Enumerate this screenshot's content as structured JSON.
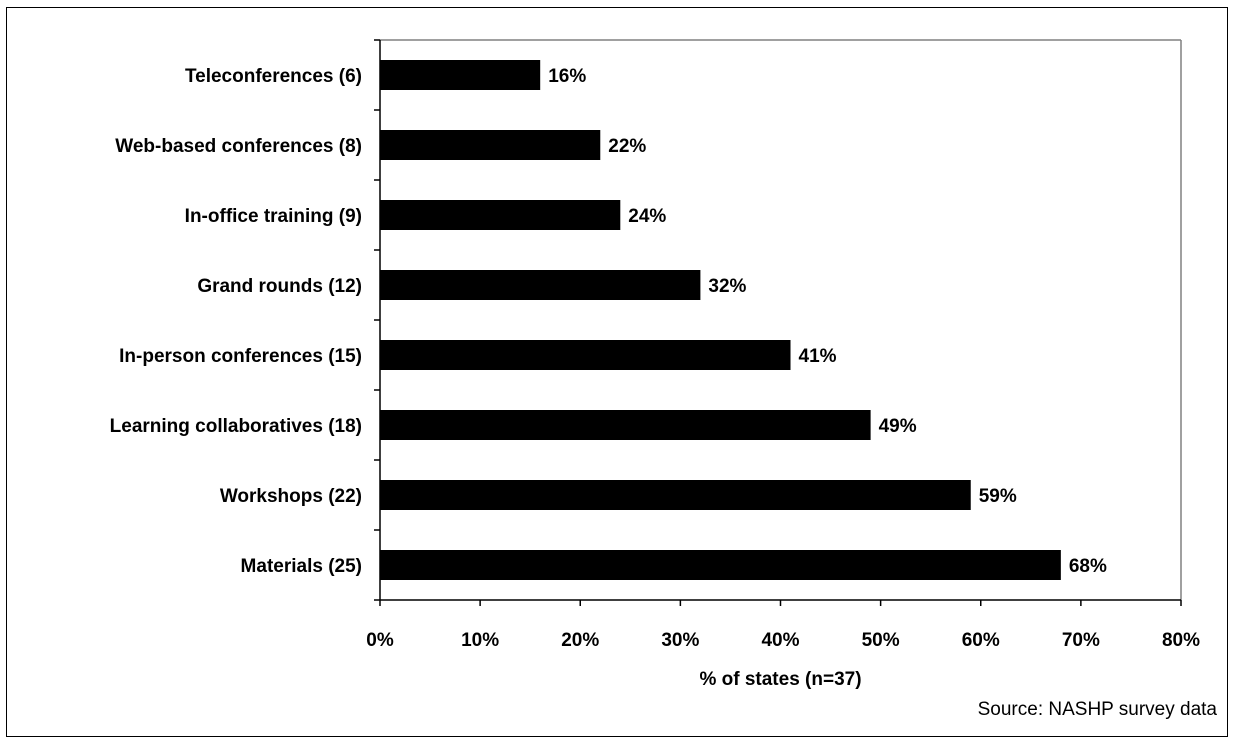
{
  "chart_data": {
    "type": "bar",
    "orientation": "horizontal",
    "categories": [
      "Teleconferences (6)",
      "Web-based conferences (8)",
      "In-office training (9)",
      "Grand rounds (12)",
      "In-person conferences (15)",
      "Learning collaboratives (18)",
      "Workshops (22)",
      "Materials (25)"
    ],
    "values": [
      16,
      22,
      24,
      32,
      41,
      49,
      59,
      68
    ],
    "data_labels": [
      "16%",
      "22%",
      "24%",
      "32%",
      "41%",
      "49%",
      "59%",
      "68%"
    ],
    "xlabel": "% of states (n=37)",
    "ylabel": "",
    "xlim": [
      0,
      80
    ],
    "xticks": [
      0,
      10,
      20,
      30,
      40,
      50,
      60,
      70,
      80
    ],
    "xtick_labels": [
      "0%",
      "10%",
      "20%",
      "30%",
      "40%",
      "50%",
      "60%",
      "70%",
      "80%"
    ],
    "grid": false,
    "bar_color": "#000000",
    "source_note": "Source: NASHP survey data"
  }
}
